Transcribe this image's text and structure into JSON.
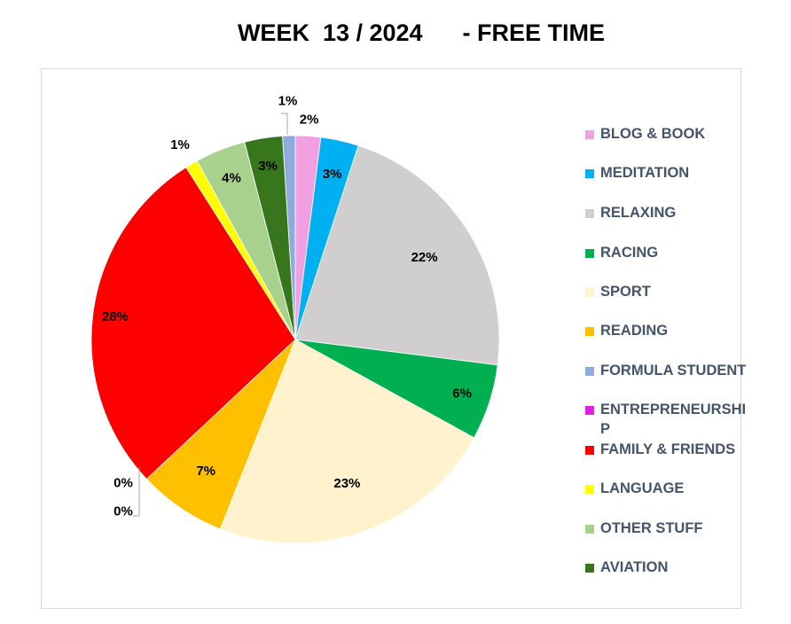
{
  "chart_data": {
    "type": "pie",
    "title": "WEEK  13 / 2024      - FREE TIME",
    "legend_position": "right",
    "slices": [
      {
        "name": "BLOG & BOOK",
        "value": 2,
        "label": "2%",
        "color": "#f0a0e0"
      },
      {
        "name": "MEDITATION",
        "value": 3,
        "label": "3%",
        "color": "#00b0f0"
      },
      {
        "name": "RELAXING",
        "value": 22,
        "label": "22%",
        "color": "#d0cece"
      },
      {
        "name": "RACING",
        "value": 6,
        "label": "6%",
        "color": "#00b050"
      },
      {
        "name": "SPORT",
        "value": 23,
        "label": "23%",
        "color": "#fff2cc"
      },
      {
        "name": "READING",
        "value": 7,
        "label": "7%",
        "color": "#ffc000"
      },
      {
        "name": "FORMULA STUDENT",
        "value": 0,
        "label": "0%",
        "color": "#8faadc"
      },
      {
        "name": "ENTREPRENEURSHIP",
        "value": 0,
        "label": "0%",
        "color": "#e020e0"
      },
      {
        "name": "FAMILY & FRIENDS",
        "value": 28,
        "label": "28%",
        "color": "#ff0000"
      },
      {
        "name": "LANGUAGE",
        "value": 1,
        "label": "1%",
        "color": "#ffff00"
      },
      {
        "name": "OTHER STUFF",
        "value": 4,
        "label": "4%",
        "color": "#a9d18e"
      },
      {
        "name": "AVIATION",
        "value": 3,
        "label": "3%",
        "color": "#38761d"
      },
      {
        "name": "",
        "value": 1,
        "label": "1%",
        "color": "#8faadc"
      }
    ],
    "legend": [
      {
        "name": "BLOG & BOOK",
        "color": "#f0a0e0"
      },
      {
        "name": "MEDITATION",
        "color": "#00b0f0"
      },
      {
        "name": "RELAXING",
        "color": "#d0cece"
      },
      {
        "name": "RACING",
        "color": "#00b050"
      },
      {
        "name": "SPORT",
        "color": "#fff2cc"
      },
      {
        "name": "READING",
        "color": "#ffc000"
      },
      {
        "name": "FORMULA STUDENT",
        "color": "#8faadc"
      },
      {
        "name": "ENTREPRENEURSHIP",
        "color": "#e020e0"
      },
      {
        "name": "FAMILY & FRIENDS",
        "color": "#ff0000"
      },
      {
        "name": "LANGUAGE",
        "color": "#ffff00"
      },
      {
        "name": "OTHER STUFF",
        "color": "#a9d18e"
      },
      {
        "name": "AVIATION",
        "color": "#38761d"
      }
    ]
  }
}
